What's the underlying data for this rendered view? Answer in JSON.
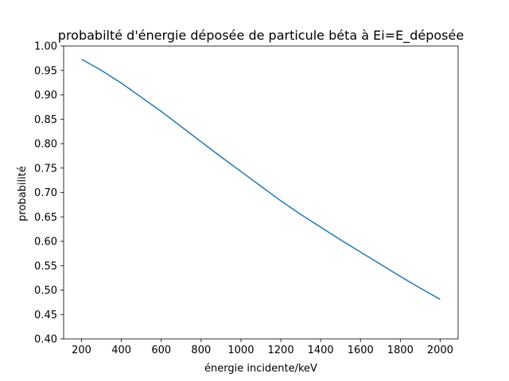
{
  "chart_data": {
    "type": "line",
    "title": "probabilté d'énergie déposée de particule béta à Ei=E_déposée",
    "xlabel": "énergie incidente/keV",
    "ylabel": "probabilité",
    "xlim": [
      110,
      2090
    ],
    "ylim": [
      0.4,
      1.0
    ],
    "xticks": [
      200,
      400,
      600,
      800,
      1000,
      1200,
      1400,
      1600,
      1800,
      2000
    ],
    "yticks": [
      0.4,
      0.45,
      0.5,
      0.55,
      0.6,
      0.65,
      0.7,
      0.75,
      0.8,
      0.85,
      0.9,
      0.95,
      1.0
    ],
    "grid": false,
    "series": [
      {
        "color": "#1f77b4",
        "x": [
          200,
          300,
          400,
          500,
          600,
          700,
          800,
          900,
          1000,
          1100,
          1200,
          1300,
          1400,
          1500,
          1600,
          1700,
          1800,
          1900,
          2000
        ],
        "y": [
          0.973,
          0.95,
          0.924,
          0.895,
          0.866,
          0.835,
          0.804,
          0.773,
          0.743,
          0.713,
          0.683,
          0.655,
          0.629,
          0.603,
          0.578,
          0.553,
          0.528,
          0.504,
          0.481
        ]
      }
    ]
  }
}
